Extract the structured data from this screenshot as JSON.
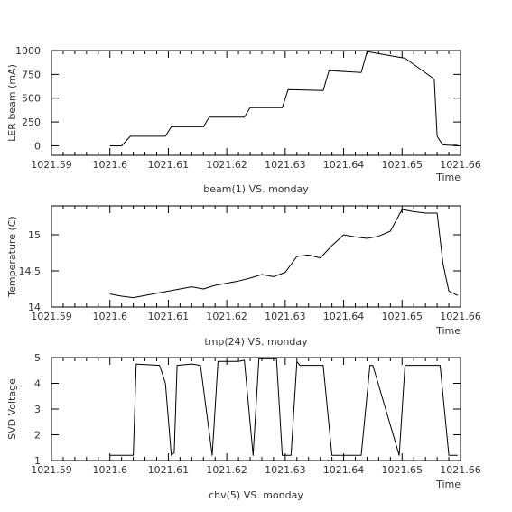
{
  "chart_data": [
    {
      "type": "line",
      "title": "beam(1) VS. monday",
      "xlabel": "Time",
      "ylabel": "LER beam (mA)",
      "xlim": [
        1021.59,
        1021.66
      ],
      "ylim": [
        -100,
        1000
      ],
      "xticks": [
        1021.59,
        1021.6,
        1021.61,
        1021.62,
        1021.63,
        1021.64,
        1021.65,
        1021.66
      ],
      "xtick_labels": [
        "1021.59",
        "1021.6",
        "1021.61",
        "1021.62",
        "1021.63",
        "1021.64",
        "1021.65",
        "1021.66"
      ],
      "yticks": [
        0,
        250,
        500,
        750,
        1000
      ],
      "ytick_labels": [
        "0",
        "250",
        "500",
        "750",
        "1000"
      ],
      "series": [
        {
          "x": [
            1021.6,
            1021.602,
            1021.6035,
            1021.6095,
            1021.6105,
            1021.616,
            1021.617,
            1021.623,
            1021.624,
            1021.6295,
            1021.6305,
            1021.6365,
            1021.6375,
            1021.643,
            1021.644,
            1021.6495,
            1021.6505,
            1021.6555,
            1021.656,
            1021.6565,
            1021.657,
            1021.658,
            1021.6595
          ],
          "y": [
            0,
            0,
            100,
            100,
            200,
            200,
            300,
            300,
            400,
            400,
            590,
            580,
            790,
            770,
            990,
            930,
            920,
            700,
            100,
            50,
            10,
            5,
            5
          ]
        }
      ]
    },
    {
      "type": "line",
      "title": "tmp(24) VS. monday",
      "xlabel": "Time",
      "ylabel": "Temperature (C)",
      "xlim": [
        1021.59,
        1021.66
      ],
      "ylim": [
        14.0,
        15.4
      ],
      "xticks": [
        1021.59,
        1021.6,
        1021.61,
        1021.62,
        1021.63,
        1021.64,
        1021.65,
        1021.66
      ],
      "xtick_labels": [
        "1021.59",
        "1021.6",
        "1021.61",
        "1021.62",
        "1021.63",
        "1021.64",
        "1021.65",
        "1021.66"
      ],
      "yticks": [
        14.0,
        14.5,
        15.0
      ],
      "ytick_labels": [
        "14",
        "14.5",
        "15"
      ],
      "series": [
        {
          "x": [
            1021.6,
            1021.602,
            1021.604,
            1021.606,
            1021.608,
            1021.61,
            1021.612,
            1021.614,
            1021.616,
            1021.618,
            1021.62,
            1021.622,
            1021.624,
            1021.626,
            1021.628,
            1021.63,
            1021.632,
            1021.634,
            1021.636,
            1021.638,
            1021.64,
            1021.642,
            1021.644,
            1021.646,
            1021.648,
            1021.65,
            1021.652,
            1021.654,
            1021.656,
            1021.657,
            1021.658,
            1021.6595
          ],
          "y": [
            14.18,
            14.15,
            14.13,
            14.16,
            14.19,
            14.22,
            14.25,
            14.28,
            14.25,
            14.3,
            14.33,
            14.36,
            14.4,
            14.45,
            14.42,
            14.48,
            14.7,
            14.72,
            14.68,
            14.85,
            15.0,
            14.97,
            14.95,
            14.98,
            15.05,
            15.35,
            15.32,
            15.3,
            15.3,
            14.6,
            14.22,
            14.16
          ]
        }
      ]
    },
    {
      "type": "line",
      "title": "chv(5) VS. monday",
      "xlabel": "Time",
      "ylabel": "SVD Voltage",
      "xlim": [
        1021.59,
        1021.66
      ],
      "ylim": [
        1,
        5
      ],
      "xticks": [
        1021.59,
        1021.6,
        1021.61,
        1021.62,
        1021.63,
        1021.64,
        1021.65,
        1021.66
      ],
      "xtick_labels": [
        "1021.59",
        "1021.6",
        "1021.61",
        "1021.62",
        "1021.63",
        "1021.64",
        "1021.65",
        "1021.66"
      ],
      "yticks": [
        1,
        2,
        3,
        4,
        5
      ],
      "ytick_labels": [
        "1",
        "2",
        "3",
        "4",
        "5"
      ],
      "series": [
        {
          "x": [
            1021.6,
            1021.6025,
            1021.604,
            1021.6045,
            1021.6085,
            1021.6095,
            1021.6105,
            1021.611,
            1021.6115,
            1021.614,
            1021.6155,
            1021.6175,
            1021.6185,
            1021.622,
            1021.623,
            1021.6245,
            1021.6255,
            1021.6285,
            1021.6295,
            1021.631,
            1021.632,
            1021.6325,
            1021.6365,
            1021.638,
            1021.643,
            1021.6445,
            1021.645,
            1021.6495,
            1021.6505,
            1021.6565,
            1021.658,
            1021.6595
          ],
          "y": [
            1.2,
            1.2,
            1.2,
            4.75,
            4.7,
            4.0,
            1.2,
            1.3,
            4.7,
            4.75,
            4.7,
            1.2,
            4.85,
            4.85,
            4.9,
            1.2,
            4.95,
            4.95,
            1.2,
            1.2,
            4.85,
            4.7,
            4.7,
            1.2,
            1.2,
            4.7,
            4.7,
            1.2,
            4.7,
            4.7,
            1.2,
            1.2
          ]
        }
      ]
    }
  ]
}
